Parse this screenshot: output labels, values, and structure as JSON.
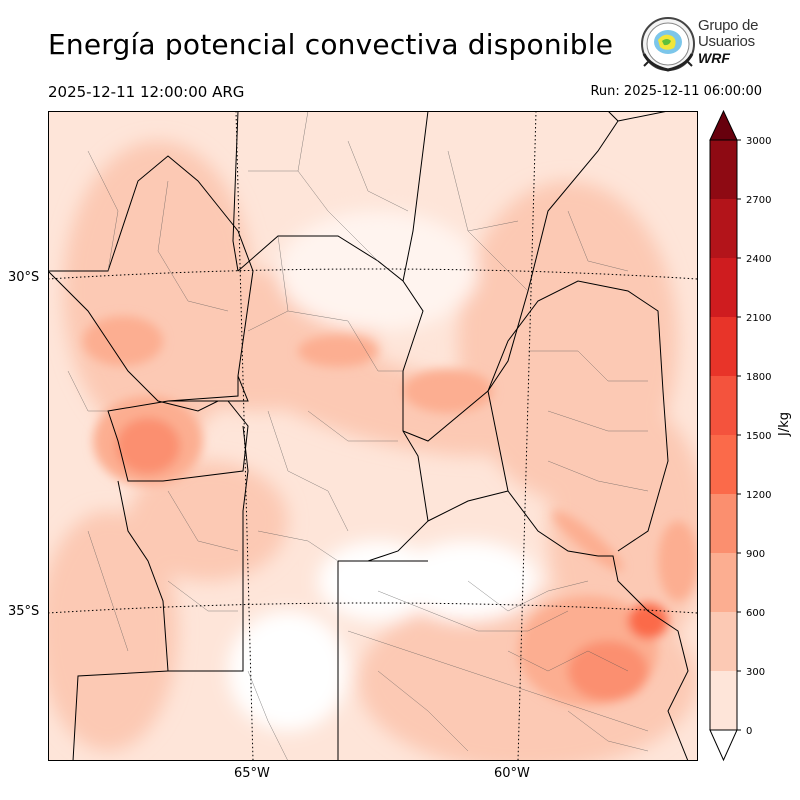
{
  "header": {
    "title": "Energía potencial convectiva disponible",
    "valid_time": "2025-12-11 12:00:00 ARG",
    "run_time": "Run: 2025-12-11 06:00:00"
  },
  "logo": {
    "line1": "Grupo de",
    "line2": "Usuarios",
    "line3": "WRF"
  },
  "map": {
    "lat_labels": [
      "30°S",
      "35°S"
    ],
    "lon_labels": [
      "65°W",
      "60°W"
    ]
  },
  "colorbar": {
    "label": "J/kg",
    "ticks": [
      "0",
      "300",
      "600",
      "900",
      "1200",
      "1500",
      "1800",
      "2100",
      "2400",
      "2700",
      "3000"
    ],
    "colors": [
      "#fee5d9",
      "#fcc9b4",
      "#fcae91",
      "#fb8f6f",
      "#fb6a4a",
      "#f4533d",
      "#e83429",
      "#cf1c1f",
      "#b3141a",
      "#8e0a13",
      "#67000d"
    ]
  }
}
